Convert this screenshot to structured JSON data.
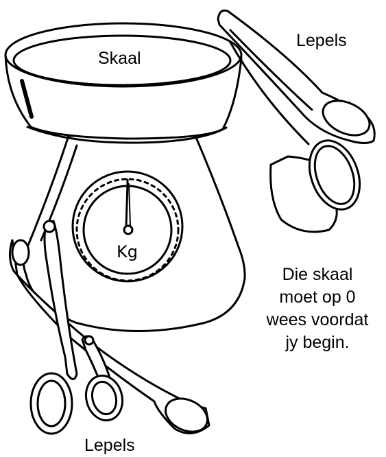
{
  "labels": {
    "bowl": "Skaal",
    "spoons_top": "Lepels",
    "spoons_bottom": "Lepels",
    "dial_unit": "Kg"
  },
  "note": {
    "lines": [
      "Die skaal",
      "moet op 0",
      "wees voordat",
      "jy begin."
    ]
  },
  "colors": {
    "ink": "#000000",
    "paper": "#ffffff"
  },
  "dial": {
    "reading": 0
  }
}
